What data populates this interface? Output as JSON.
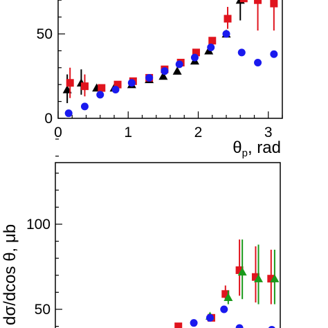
{
  "chart_data": [
    {
      "type": "scatter",
      "title": "",
      "xlabel": "θp, rad",
      "xlabel_symbol": "θ",
      "xlabel_subscript": "p",
      "xlabel_unit": ", rad",
      "ylabel": "",
      "xlim": [
        0,
        3.2
      ],
      "ylim": [
        0,
        80
      ],
      "xticks": [
        0,
        1,
        2,
        3
      ],
      "xtick_labels": [
        "0",
        "1",
        "2",
        "3"
      ],
      "yticks": [
        0,
        50
      ],
      "ytick_labels": [
        "0",
        "50"
      ],
      "grid": false,
      "series": [
        {
          "marker": "triangle",
          "color": "#000000",
          "points": [
            {
              "x": 0.13,
              "y": 17,
              "lo": 9,
              "hi": 26
            },
            {
              "x": 0.33,
              "y": 21,
              "lo": 14,
              "hi": 29
            },
            {
              "x": 0.55,
              "y": 18
            },
            {
              "x": 0.8,
              "y": 18
            },
            {
              "x": 1.05,
              "y": 20
            },
            {
              "x": 1.3,
              "y": 23
            },
            {
              "x": 1.5,
              "y": 25
            },
            {
              "x": 1.7,
              "y": 28
            },
            {
              "x": 1.95,
              "y": 34
            },
            {
              "x": 2.15,
              "y": 40
            },
            {
              "x": 2.4,
              "y": 50
            },
            {
              "x": 2.6,
              "y": 70,
              "lo": 58,
              "hi": 85
            }
          ]
        },
        {
          "marker": "square",
          "color": "#e0141e",
          "points": [
            {
              "x": 0.17,
              "y": 21,
              "lo": 12,
              "hi": 30
            },
            {
              "x": 0.38,
              "y": 19,
              "lo": 13,
              "hi": 26
            },
            {
              "x": 0.62,
              "y": 18
            },
            {
              "x": 0.85,
              "y": 20
            },
            {
              "x": 1.07,
              "y": 22
            },
            {
              "x": 1.3,
              "y": 24
            },
            {
              "x": 1.52,
              "y": 29
            },
            {
              "x": 1.75,
              "y": 33
            },
            {
              "x": 1.97,
              "y": 39
            },
            {
              "x": 2.2,
              "y": 46
            },
            {
              "x": 2.42,
              "y": 59,
              "lo": 53,
              "hi": 66
            },
            {
              "x": 2.65,
              "y": 71
            },
            {
              "x": 2.85,
              "y": 70,
              "lo": 52,
              "hi": 85
            },
            {
              "x": 3.08,
              "y": 68,
              "lo": 52,
              "hi": 85
            }
          ]
        },
        {
          "marker": "circle",
          "color": "#1a1aee",
          "points": [
            {
              "x": 0.15,
              "y": 3
            },
            {
              "x": 0.38,
              "y": 7
            },
            {
              "x": 0.6,
              "y": 14
            },
            {
              "x": 0.82,
              "y": 17
            },
            {
              "x": 1.05,
              "y": 21
            },
            {
              "x": 1.3,
              "y": 24
            },
            {
              "x": 1.52,
              "y": 28
            },
            {
              "x": 1.73,
              "y": 32
            },
            {
              "x": 1.95,
              "y": 36
            },
            {
              "x": 2.18,
              "y": 42
            },
            {
              "x": 2.4,
              "y": 50
            },
            {
              "x": 2.62,
              "y": 39
            },
            {
              "x": 2.85,
              "y": 33
            },
            {
              "x": 3.08,
              "y": 38
            }
          ]
        }
      ]
    },
    {
      "type": "scatter",
      "title": "",
      "xlabel": "",
      "ylabel": "dσ/dcos θ, μb",
      "xlim": [
        0,
        3.2
      ],
      "ylim": [
        40,
        150
      ],
      "xticks": [
        0,
        1,
        2,
        3
      ],
      "yticks": [
        50,
        100
      ],
      "ytick_labels": [
        "50",
        "100"
      ],
      "grid": false,
      "series": [
        {
          "marker": "square",
          "color": "#e0141e",
          "points": [
            {
              "x": 1.75,
              "y": 40
            },
            {
              "x": 2.22,
              "y": 45
            },
            {
              "x": 2.42,
              "y": 59,
              "lo": 55,
              "hi": 64
            },
            {
              "x": 2.62,
              "y": 73,
              "lo": 58,
              "hi": 91
            },
            {
              "x": 2.85,
              "y": 69,
              "lo": 54,
              "hi": 87
            },
            {
              "x": 3.07,
              "y": 68,
              "lo": 53,
              "hi": 85
            }
          ]
        },
        {
          "marker": "triangle",
          "color": "#1a9a1a",
          "points": [
            {
              "x": 2.2,
              "y": 46
            },
            {
              "x": 2.46,
              "y": 57,
              "lo": 53,
              "hi": 61
            },
            {
              "x": 2.66,
              "y": 72,
              "lo": 56,
              "hi": 91
            },
            {
              "x": 2.89,
              "y": 68,
              "lo": 53,
              "hi": 88
            },
            {
              "x": 3.12,
              "y": 68,
              "lo": 53,
              "hi": 85
            }
          ]
        },
        {
          "marker": "circle",
          "color": "#1a1aee",
          "points": [
            {
              "x": 1.97,
              "y": 42
            },
            {
              "x": 2.2,
              "y": 45
            },
            {
              "x": 2.4,
              "y": 50
            },
            {
              "x": 2.62,
              "y": 39
            },
            {
              "x": 3.08,
              "y": 38
            }
          ]
        }
      ]
    }
  ]
}
